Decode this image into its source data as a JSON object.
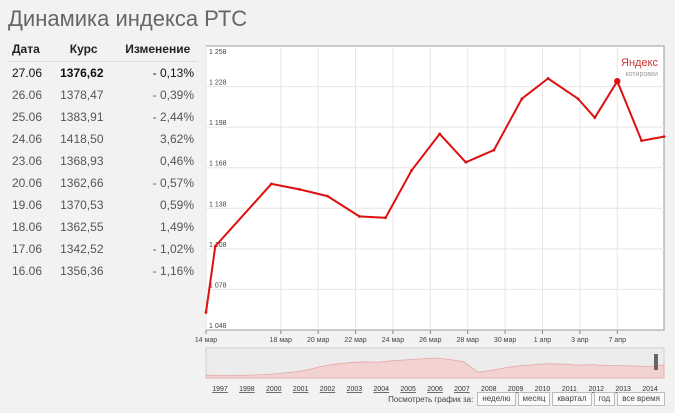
{
  "title": "Динамика индекса РТС",
  "table": {
    "headers": [
      "Дата",
      "Курс",
      "Изменение"
    ],
    "rows": [
      {
        "date": "27.06",
        "value": "1376,62",
        "change": "- 0,13%"
      },
      {
        "date": "26.06",
        "value": "1378,47",
        "change": "- 0,39%"
      },
      {
        "date": "25.06",
        "value": "1383,91",
        "change": "- 2,44%"
      },
      {
        "date": "24.06",
        "value": "1418,50",
        "change": "3,62%"
      },
      {
        "date": "23.06",
        "value": "1368,93",
        "change": "0,46%"
      },
      {
        "date": "20.06",
        "value": "1362,66",
        "change": "- 0,57%"
      },
      {
        "date": "19.06",
        "value": "1370,53",
        "change": "0,59%"
      },
      {
        "date": "18.06",
        "value": "1362,55",
        "change": "1,49%"
      },
      {
        "date": "17.06",
        "value": "1342,52",
        "change": "- 1,02%"
      },
      {
        "date": "16.06",
        "value": "1356,36",
        "change": "- 1,16%"
      }
    ]
  },
  "yandex": {
    "name": "Яндекс",
    "sub": "котировки"
  },
  "footer": {
    "label": "Посмотреть график за:",
    "options": [
      "неделю",
      "месяц",
      "квартал",
      "год",
      "все время"
    ]
  },
  "chart_data": {
    "type": "line",
    "title": "",
    "xlabel": "",
    "ylabel": "",
    "ylim": [
      1048,
      1258
    ],
    "yticks": [
      1048,
      1078,
      1108,
      1138,
      1168,
      1198,
      1228,
      1258
    ],
    "ytick_labels": [
      "1 048",
      "1 078",
      "1 108",
      "1 138",
      "1 168",
      "1 198",
      "1 228",
      "1 258"
    ],
    "xlim": [
      14,
      38.5
    ],
    "xticks": [
      14,
      18,
      20,
      22,
      24,
      26,
      28,
      30,
      32,
      34,
      36
    ],
    "xtick_labels": [
      "14 мар",
      "18 мар",
      "20 мар",
      "22 мар",
      "24 мар",
      "26 мар",
      "28 мар",
      "30 мар",
      "1 апр",
      "3 апр",
      "7 апр"
    ],
    "series": [
      {
        "name": "РТС",
        "color": "#dd1111",
        "x": [
          14,
          14.5,
          17.5,
          19,
          20.5,
          22.2,
          23.6,
          25,
          26.5,
          27.9,
          29.4,
          30.9,
          32.3,
          33.9,
          34.8,
          36,
          37.3,
          38.5
        ],
        "y": [
          1061,
          1110,
          1156,
          1152,
          1147,
          1132,
          1131,
          1166,
          1193,
          1172,
          1181,
          1219,
          1234,
          1219,
          1205,
          1232,
          1188,
          1191
        ],
        "highlight_x": 36
      }
    ],
    "navigator": {
      "years": [
        "1997",
        "1998",
        "2000",
        "2001",
        "2002",
        "2003",
        "2004",
        "2005",
        "2006",
        "2007",
        "2008",
        "2009",
        "2010",
        "2011",
        "2012",
        "2013",
        "2014"
      ],
      "profile": [
        2,
        1,
        1,
        2,
        3,
        5,
        8,
        12,
        20,
        25,
        28,
        30,
        29,
        32,
        34,
        36,
        38,
        35,
        30,
        8,
        12,
        18,
        22,
        24,
        26,
        25,
        23,
        24,
        22,
        22,
        21,
        20,
        23
      ]
    }
  }
}
